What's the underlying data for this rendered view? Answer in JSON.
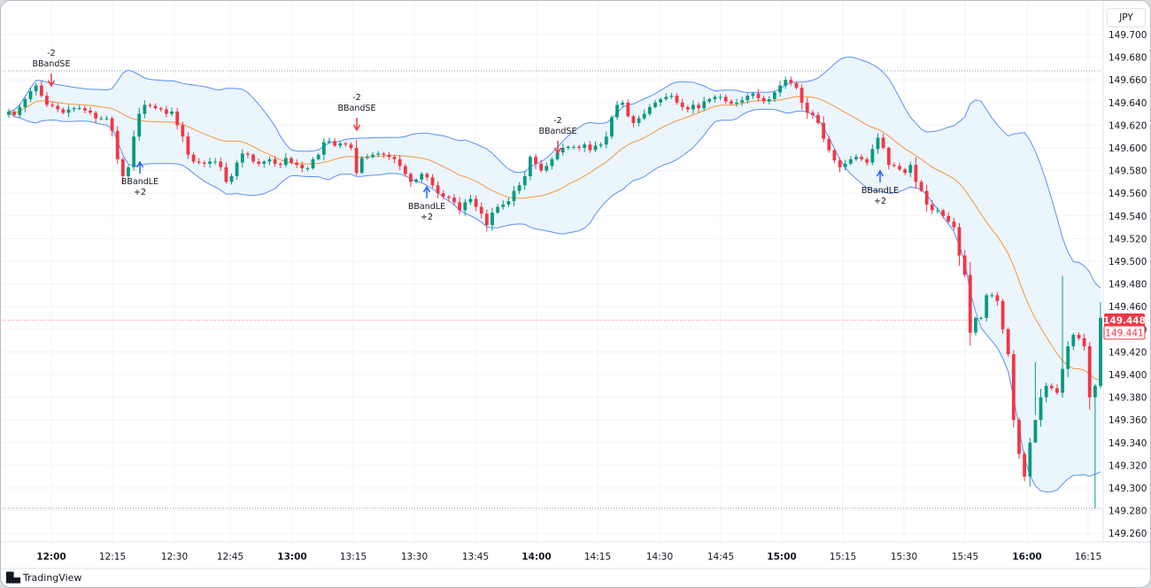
{
  "currency": "JPY",
  "branding": "TradingView",
  "chart_data": {
    "type": "candlestick",
    "indicator": "Bollinger Bands strategy",
    "y_ticks": [
      "149.700",
      "149.680",
      "149.660",
      "149.640",
      "149.620",
      "149.600",
      "149.580",
      "149.560",
      "149.540",
      "149.520",
      "149.500",
      "149.480",
      "149.460",
      "149.440",
      "149.420",
      "149.400",
      "149.380",
      "149.360",
      "149.340",
      "149.320",
      "149.300",
      "149.280",
      "149.260"
    ],
    "y_range": [
      149.245,
      149.715
    ],
    "x_ticks": [
      {
        "label": "12:00",
        "bold": true
      },
      {
        "label": "12:15",
        "bold": false
      },
      {
        "label": "12:30",
        "bold": false
      },
      {
        "label": "12:45",
        "bold": false
      },
      {
        "label": "13:00",
        "bold": true
      },
      {
        "label": "13:15",
        "bold": false
      },
      {
        "label": "13:30",
        "bold": false
      },
      {
        "label": "13:45",
        "bold": false
      },
      {
        "label": "14:00",
        "bold": true
      },
      {
        "label": "14:15",
        "bold": false
      },
      {
        "label": "14:30",
        "bold": false
      },
      {
        "label": "14:45",
        "bold": false
      },
      {
        "label": "15:00",
        "bold": true
      },
      {
        "label": "15:15",
        "bold": false
      },
      {
        "label": "15:30",
        "bold": false
      },
      {
        "label": "15:45",
        "bold": false
      },
      {
        "label": "16:00",
        "bold": true
      },
      {
        "label": "16:15",
        "bold": false
      }
    ],
    "current_price": "149.448",
    "prev_close": "149.441",
    "colors": {
      "up": "#089981",
      "down": "#f23645",
      "upper_band": "#5b8ff9",
      "lower_band": "#5b8ff9",
      "basis": "#f7953b",
      "fill": "#e8f3fc",
      "long_signal": "#2962ff",
      "short_signal": "#f23645",
      "price_tag": "#f23645"
    },
    "closes": [
      149.632,
      149.629,
      149.636,
      149.643,
      149.65,
      149.655,
      149.646,
      149.638,
      149.637,
      149.634,
      149.631,
      149.634,
      149.635,
      149.635,
      149.633,
      149.631,
      149.626,
      149.626,
      149.626,
      149.615,
      149.59,
      149.575,
      149.583,
      149.61,
      149.63,
      149.638,
      149.637,
      149.635,
      149.634,
      149.63,
      149.632,
      149.62,
      149.61,
      149.594,
      149.588,
      149.587,
      149.586,
      149.588,
      149.588,
      149.583,
      149.57,
      149.575,
      149.587,
      149.595,
      149.594,
      149.588,
      149.586,
      149.588,
      149.59,
      149.586,
      149.585,
      149.591,
      149.587,
      149.585,
      149.582,
      149.582,
      149.59,
      149.594,
      149.605,
      149.606,
      149.602,
      149.604,
      149.603,
      149.6,
      149.578,
      149.591,
      149.592,
      149.594,
      149.595,
      149.594,
      149.592,
      149.59,
      149.584,
      149.577,
      149.57,
      149.572,
      149.577,
      149.574,
      149.567,
      149.56,
      149.557,
      149.556,
      149.552,
      149.545,
      149.552,
      149.555,
      149.548,
      149.542,
      149.532,
      149.543,
      149.548,
      149.55,
      149.553,
      149.562,
      149.567,
      149.575,
      149.592,
      149.586,
      149.58,
      149.584,
      149.59,
      149.596,
      149.6,
      149.601,
      149.601,
      149.6,
      149.603,
      149.598,
      149.602,
      149.603,
      149.61,
      149.627,
      149.638,
      149.64,
      149.628,
      149.622,
      149.626,
      149.63,
      149.636,
      149.64,
      149.643,
      149.645,
      149.646,
      149.64,
      149.636,
      149.634,
      149.638,
      149.635,
      149.641,
      149.643,
      149.645,
      149.645,
      149.641,
      149.639,
      149.64,
      149.642,
      149.646,
      149.648,
      149.644,
      149.641,
      149.643,
      149.649,
      149.655,
      149.66,
      149.657,
      149.653,
      149.64,
      149.631,
      149.629,
      149.622,
      149.608,
      149.598,
      149.589,
      149.583,
      149.586,
      149.59,
      149.592,
      149.59,
      149.587,
      149.599,
      149.609,
      149.6,
      149.585,
      149.584,
      149.581,
      149.578,
      149.585,
      149.57,
      149.562,
      149.55,
      149.545,
      149.545,
      149.54,
      149.535,
      149.53,
      149.505,
      149.488,
      149.437,
      149.45,
      149.45,
      149.47,
      149.47,
      149.465,
      149.44,
      149.418,
      149.36,
      149.33,
      149.31,
      149.34,
      149.36,
      149.38,
      149.39,
      149.388,
      149.384,
      149.405,
      149.425,
      149.435,
      149.432,
      149.425,
      149.38,
      149.39,
      149.45
    ],
    "signals": [
      {
        "type": "short",
        "qty": "-2",
        "name": "BBandSE"
      },
      {
        "type": "long",
        "qty": "+2",
        "name": "BBandLE"
      },
      {
        "type": "short",
        "qty": "-2",
        "name": "BBandSE"
      },
      {
        "type": "long",
        "qty": "+2",
        "name": "BBandLE"
      },
      {
        "type": "short",
        "qty": "-2",
        "name": "BBandSE"
      },
      {
        "type": "long",
        "qty": "+2",
        "name": "BBandLE"
      }
    ]
  }
}
